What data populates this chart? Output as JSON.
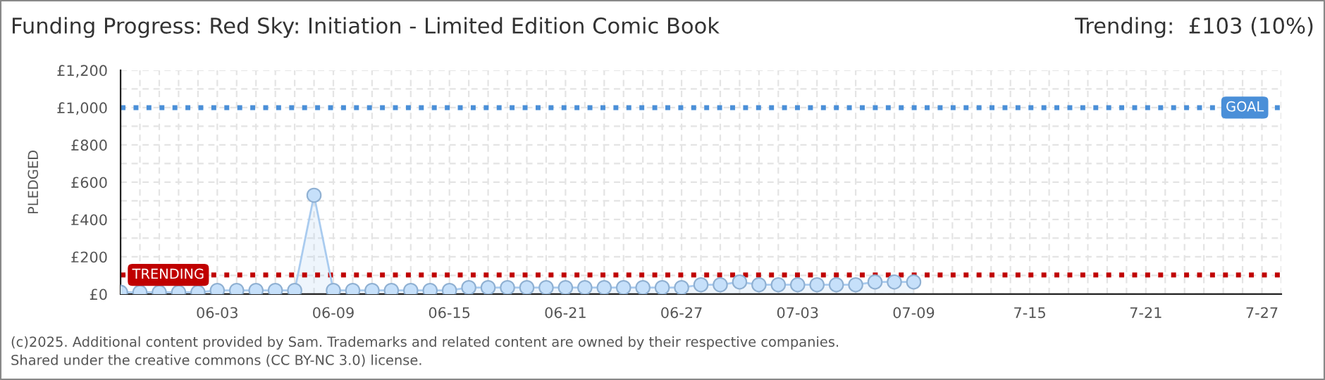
{
  "chart_data": {
    "type": "area",
    "title": "Funding Progress: Red Sky: Initiation - Limited Edition Comic Book",
    "subtitle": "Trending:  £103 (10%)",
    "ylabel": "PLEDGED",
    "x": [
      "2025-05-29",
      "2025-05-30",
      "2025-05-31",
      "2025-06-01",
      "2025-06-02",
      "2025-06-03",
      "2025-06-04",
      "2025-06-05",
      "2025-06-06",
      "2025-06-07",
      "2025-06-08",
      "2025-06-09",
      "2025-06-10",
      "2025-06-11",
      "2025-06-12",
      "2025-06-13",
      "2025-06-14",
      "2025-06-15",
      "2025-06-16",
      "2025-06-17",
      "2025-06-18",
      "2025-06-19",
      "2025-06-20",
      "2025-06-21",
      "2025-06-22",
      "2025-06-23",
      "2025-06-24",
      "2025-06-25",
      "2025-06-26",
      "2025-06-27",
      "2025-06-28",
      "2025-06-29",
      "2025-06-30",
      "2025-07-01",
      "2025-07-02",
      "2025-07-03",
      "2025-07-04",
      "2025-07-05",
      "2025-07-06",
      "2025-07-07",
      "2025-07-08",
      "2025-07-09"
    ],
    "series": [
      {
        "color": "#a9cbef",
        "values": [
          10,
          10,
          10,
          10,
          10,
          20,
          20,
          20,
          20,
          20,
          530,
          20,
          20,
          20,
          20,
          20,
          20,
          20,
          35,
          35,
          35,
          35,
          35,
          35,
          35,
          35,
          35,
          35,
          35,
          35,
          50,
          50,
          65,
          50,
          50,
          50,
          50,
          50,
          50,
          65,
          65,
          65
        ]
      }
    ],
    "marker": "circle",
    "xlim": [
      "2025-05-29",
      "2025-07-28"
    ],
    "xticks": [
      {
        "value": "2025-05-29",
        "label": null
      },
      {
        "value": "2025-05-30",
        "label": null
      },
      {
        "value": "2025-05-31",
        "label": null
      },
      {
        "value": "2025-06-01",
        "label": null
      },
      {
        "value": "2025-06-02",
        "label": null
      },
      {
        "value": "2025-06-03",
        "label": "06-03"
      },
      {
        "value": "2025-06-04",
        "label": null
      },
      {
        "value": "2025-06-05",
        "label": null
      },
      {
        "value": "2025-06-06",
        "label": null
      },
      {
        "value": "2025-06-07",
        "label": null
      },
      {
        "value": "2025-06-08",
        "label": null
      },
      {
        "value": "2025-06-09",
        "label": "06-09"
      },
      {
        "value": "2025-06-10",
        "label": null
      },
      {
        "value": "2025-06-11",
        "label": null
      },
      {
        "value": "2025-06-12",
        "label": null
      },
      {
        "value": "2025-06-13",
        "label": null
      },
      {
        "value": "2025-06-14",
        "label": null
      },
      {
        "value": "2025-06-15",
        "label": "06-15"
      },
      {
        "value": "2025-06-16",
        "label": null
      },
      {
        "value": "2025-06-17",
        "label": null
      },
      {
        "value": "2025-06-18",
        "label": null
      },
      {
        "value": "2025-06-19",
        "label": null
      },
      {
        "value": "2025-06-20",
        "label": null
      },
      {
        "value": "2025-06-21",
        "label": "06-21"
      },
      {
        "value": "2025-06-22",
        "label": null
      },
      {
        "value": "2025-06-23",
        "label": null
      },
      {
        "value": "2025-06-24",
        "label": null
      },
      {
        "value": "2025-06-25",
        "label": null
      },
      {
        "value": "2025-06-26",
        "label": null
      },
      {
        "value": "2025-06-27",
        "label": "06-27"
      },
      {
        "value": "2025-06-28",
        "label": null
      },
      {
        "value": "2025-06-29",
        "label": null
      },
      {
        "value": "2025-06-30",
        "label": null
      },
      {
        "value": "2025-07-01",
        "label": null
      },
      {
        "value": "2025-07-02",
        "label": null
      },
      {
        "value": "2025-07-03",
        "label": "07-03"
      },
      {
        "value": "2025-07-04",
        "label": null
      },
      {
        "value": "2025-07-05",
        "label": null
      },
      {
        "value": "2025-07-06",
        "label": null
      },
      {
        "value": "2025-07-07",
        "label": null
      },
      {
        "value": "2025-07-08",
        "label": null
      },
      {
        "value": "2025-07-09",
        "label": "07-09"
      },
      {
        "value": "2025-07-10",
        "label": null
      },
      {
        "value": "2025-07-11",
        "label": null
      },
      {
        "value": "2025-07-12",
        "label": null
      },
      {
        "value": "2025-07-13",
        "label": null
      },
      {
        "value": "2025-07-14",
        "label": null
      },
      {
        "value": "2025-07-15",
        "label": "7-15"
      },
      {
        "value": "2025-07-16",
        "label": null
      },
      {
        "value": "2025-07-17",
        "label": null
      },
      {
        "value": "2025-07-18",
        "label": null
      },
      {
        "value": "2025-07-19",
        "label": null
      },
      {
        "value": "2025-07-20",
        "label": null
      },
      {
        "value": "2025-07-21",
        "label": "7-21"
      },
      {
        "value": "2025-07-22",
        "label": null
      },
      {
        "value": "2025-07-23",
        "label": null
      },
      {
        "value": "2025-07-24",
        "label": null
      },
      {
        "value": "2025-07-25",
        "label": null
      },
      {
        "value": "2025-07-26",
        "label": null
      },
      {
        "value": "2025-07-27",
        "label": "7-27"
      },
      {
        "value": "2025-07-28",
        "label": null
      }
    ],
    "ylim": [
      0,
      1200
    ],
    "yticks": [
      {
        "value": 0,
        "label": "£0"
      },
      {
        "value": 100,
        "label": null
      },
      {
        "value": 200,
        "label": "£200"
      },
      {
        "value": 300,
        "label": null
      },
      {
        "value": 400,
        "label": "£400"
      },
      {
        "value": 500,
        "label": null
      },
      {
        "value": 600,
        "label": "£600"
      },
      {
        "value": 700,
        "label": null
      },
      {
        "value": 800,
        "label": "£800"
      },
      {
        "value": 900,
        "label": null
      },
      {
        "value": 1000,
        "label": "£1,000"
      },
      {
        "value": 1100,
        "label": null
      },
      {
        "value": 1200,
        "label": "£1,200"
      }
    ],
    "grid": true,
    "ref_lines": [
      {
        "axis": "y",
        "value": 1000,
        "label": "GOAL",
        "color": "#4a8fd8",
        "line_style": "dotted"
      },
      {
        "axis": "y",
        "value": 103,
        "label": "TRENDING",
        "color": "#c00000",
        "line_style": "dotted"
      }
    ],
    "annotations": [
      "(c)2025. Additional content provided by Sam. Trademarks and related content are owned by their respective companies.",
      "Shared under the creative commons (CC BY-NC 3.0) license."
    ]
  }
}
